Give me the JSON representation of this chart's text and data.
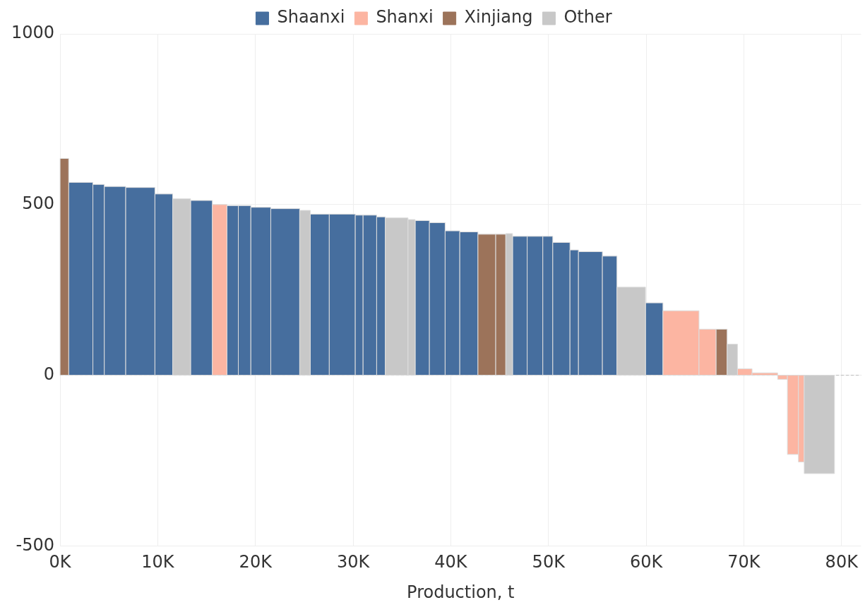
{
  "chart_data": {
    "type": "histogram",
    "xlabel": "Production, t",
    "bins": [
      0,
      880,
      3360,
      4530,
      6720,
      9710,
      11530,
      13360,
      15590,
      17080,
      18250,
      19530,
      21570,
      24530,
      25620,
      27560,
      30220,
      31020,
      32410,
      33290,
      35620,
      36350,
      37810,
      39420,
      40920,
      42780,
      44600,
      45630,
      46320,
      47820,
      49420,
      50440,
      52200,
      53070,
      55520,
      57010,
      59930,
      61720,
      65410,
      67160,
      68290,
      69350,
      70840,
      73460,
      74460,
      75590,
      76180,
      79280
    ],
    "series": [
      {
        "name": "Shaanxi",
        "color": "#466e9e",
        "values": [
          null,
          565,
          559,
          553,
          550,
          531,
          null,
          512,
          null,
          497,
          497,
          492,
          488,
          null,
          472,
          472,
          469,
          469,
          464,
          null,
          null,
          453,
          447,
          423,
          420,
          null,
          null,
          null,
          407,
          407,
          407,
          389,
          367,
          362,
          349,
          null,
          212,
          null,
          null,
          null,
          null,
          null,
          null,
          null,
          null,
          null,
          null
        ]
      },
      {
        "name": "Shanxi",
        "color": "#fcb5a2",
        "values": [
          null,
          null,
          null,
          null,
          null,
          null,
          null,
          null,
          500,
          null,
          null,
          null,
          null,
          null,
          null,
          null,
          null,
          null,
          null,
          null,
          null,
          null,
          null,
          null,
          null,
          null,
          null,
          null,
          null,
          null,
          null,
          null,
          null,
          null,
          null,
          null,
          null,
          189,
          135,
          null,
          null,
          19,
          7,
          -12,
          -232,
          -254,
          null
        ]
      },
      {
        "name": "Xinjiang",
        "color": "#9c735a",
        "values": [
          635,
          null,
          null,
          null,
          null,
          null,
          null,
          null,
          null,
          null,
          null,
          null,
          null,
          null,
          null,
          null,
          null,
          null,
          null,
          null,
          null,
          null,
          null,
          null,
          null,
          413,
          413,
          null,
          null,
          null,
          null,
          null,
          null,
          null,
          null,
          null,
          null,
          null,
          null,
          135,
          null,
          null,
          null,
          null,
          null,
          null,
          null
        ]
      },
      {
        "name": "Other",
        "color": "#c8c8c8",
        "values": [
          null,
          null,
          null,
          null,
          null,
          null,
          517,
          null,
          null,
          null,
          null,
          null,
          null,
          483,
          null,
          null,
          null,
          null,
          null,
          461,
          456,
          null,
          null,
          null,
          null,
          null,
          null,
          415,
          null,
          null,
          null,
          null,
          null,
          null,
          null,
          258,
          null,
          null,
          null,
          null,
          91,
          null,
          null,
          null,
          null,
          null,
          -288
        ]
      }
    ],
    "xlim": [
      0,
      82000
    ],
    "xticks": [
      {
        "value": 0,
        "label": "0K"
      },
      {
        "value": 10000,
        "label": "10K"
      },
      {
        "value": 20000,
        "label": "20K"
      },
      {
        "value": 30000,
        "label": "30K"
      },
      {
        "value": 40000,
        "label": "40K"
      },
      {
        "value": 50000,
        "label": "50K"
      },
      {
        "value": 60000,
        "label": "60K"
      },
      {
        "value": 70000,
        "label": "70K"
      },
      {
        "value": 80000,
        "label": "80K"
      }
    ],
    "ylim": [
      -500,
      1000
    ],
    "yticks": [
      -500,
      0,
      500,
      1000
    ],
    "ref_lines": [
      {
        "axis": "y",
        "value": 0,
        "color": "#bbbbbb",
        "line_style": "dashed"
      }
    ],
    "grid": true,
    "legend": "top"
  }
}
